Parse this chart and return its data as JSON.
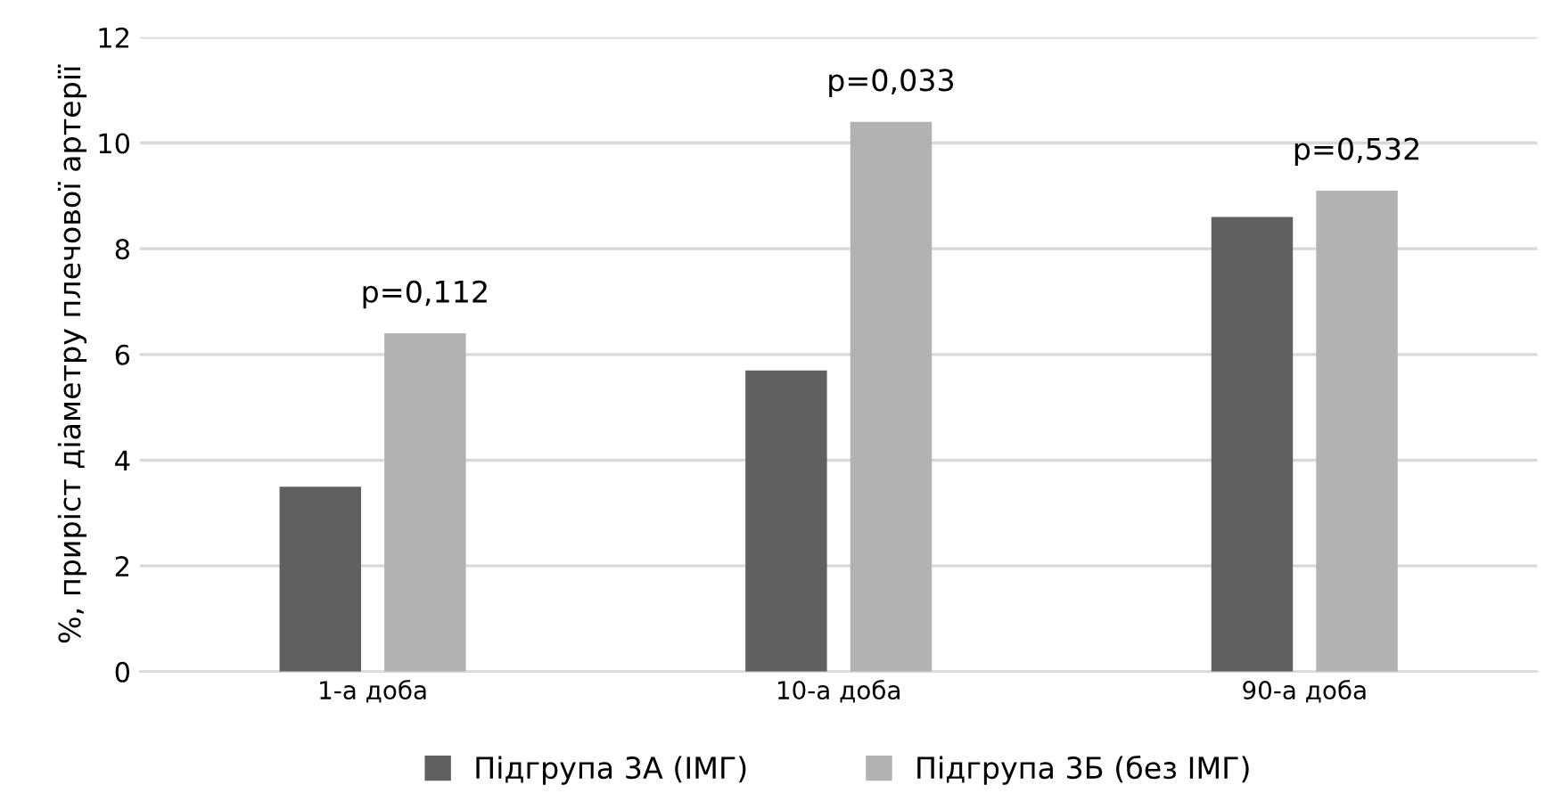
{
  "chart_data": {
    "type": "bar",
    "ylabel": "%, приріст діаметру плечової артерії",
    "categories": [
      "1-а доба",
      "10-а доба",
      "90-а доба"
    ],
    "series": [
      {
        "name": "Підгрупа 3А (ІМГ)",
        "color": "#606060",
        "values": [
          3.5,
          5.7,
          8.6
        ]
      },
      {
        "name": "Підгрупа 3Б (без ІМГ)",
        "color": "#b2b2b2",
        "values": [
          6.4,
          10.4,
          9.1
        ]
      }
    ],
    "ylim": [
      0,
      12
    ],
    "yticks": [
      0,
      2,
      4,
      6,
      8,
      10,
      12
    ],
    "grid": "y",
    "legend": "bottom",
    "annotations": [
      "p=0,112",
      "p=0,033",
      "p=0,532"
    ]
  }
}
